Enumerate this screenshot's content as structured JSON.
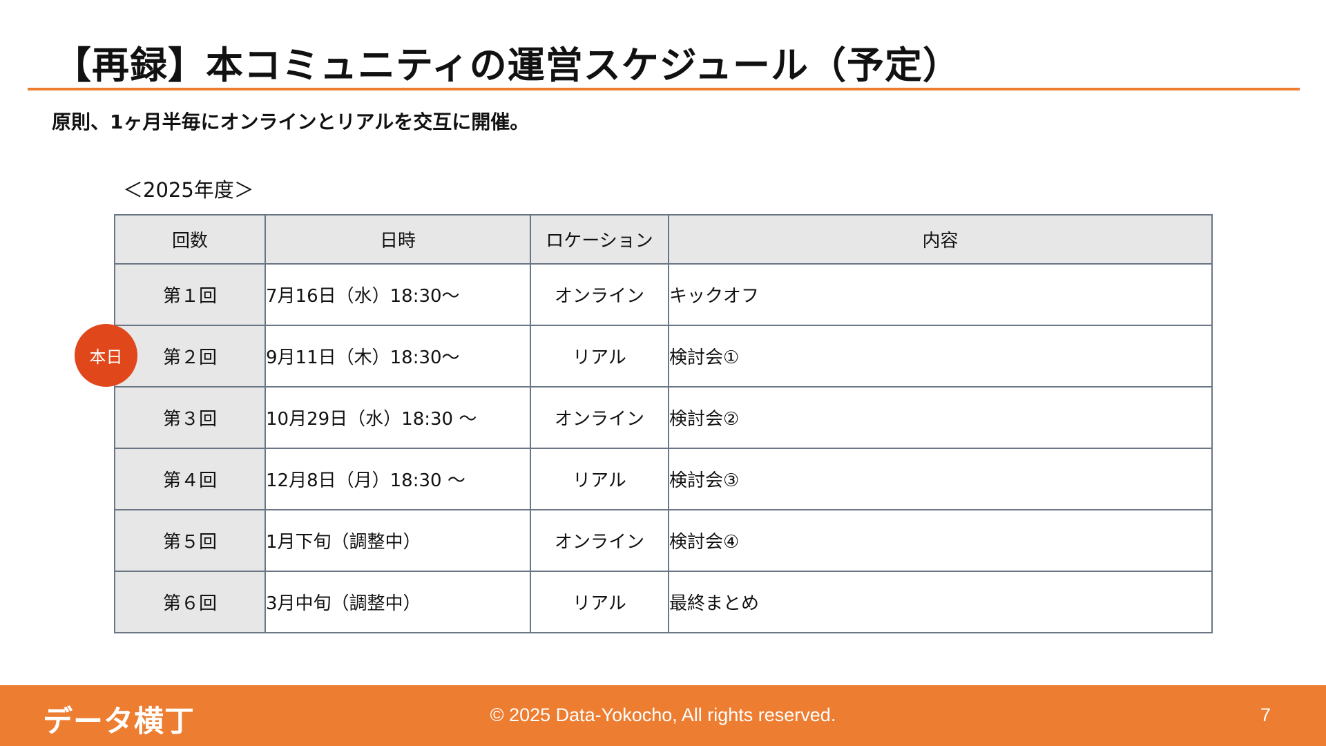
{
  "slide": {
    "title": "【再録】本コミュニティの運営スケジュール（予定）",
    "subtitle": "原則、1ヶ月半毎にオンラインとリアルを交互に開催。",
    "year_label": "＜2025年度＞",
    "accent_color": "#ED7D31",
    "badge_color": "#E0471A"
  },
  "table": {
    "headers": {
      "round": "回数",
      "datetime": "日時",
      "location": "ロケーション",
      "content": "内容"
    },
    "rows": [
      {
        "round": "第１回",
        "datetime": "7月16日（水）18:30〜",
        "location": "オンライン",
        "content": "キックオフ"
      },
      {
        "round": "第２回",
        "datetime": "9月11日（木）18:30〜",
        "location": "リアル",
        "content": "検討会①"
      },
      {
        "round": "第３回",
        "datetime": "10月29日（水）18:30 〜",
        "location": "オンライン",
        "content": "検討会②"
      },
      {
        "round": "第４回",
        "datetime": "12月8日（月）18:30 〜",
        "location": "リアル",
        "content": "検討会③"
      },
      {
        "round": "第５回",
        "datetime": "1月下旬（調整中）",
        "location": "オンライン",
        "content": "検討会④"
      },
      {
        "round": "第６回",
        "datetime": "3月中旬（調整中）",
        "location": "リアル",
        "content": "最終まとめ"
      }
    ]
  },
  "badge": {
    "label": "本日"
  },
  "footer": {
    "logo": "データ横丁",
    "copyright": "© 2025 Data-Yokocho, All rights reserved.",
    "page_number": "7"
  }
}
